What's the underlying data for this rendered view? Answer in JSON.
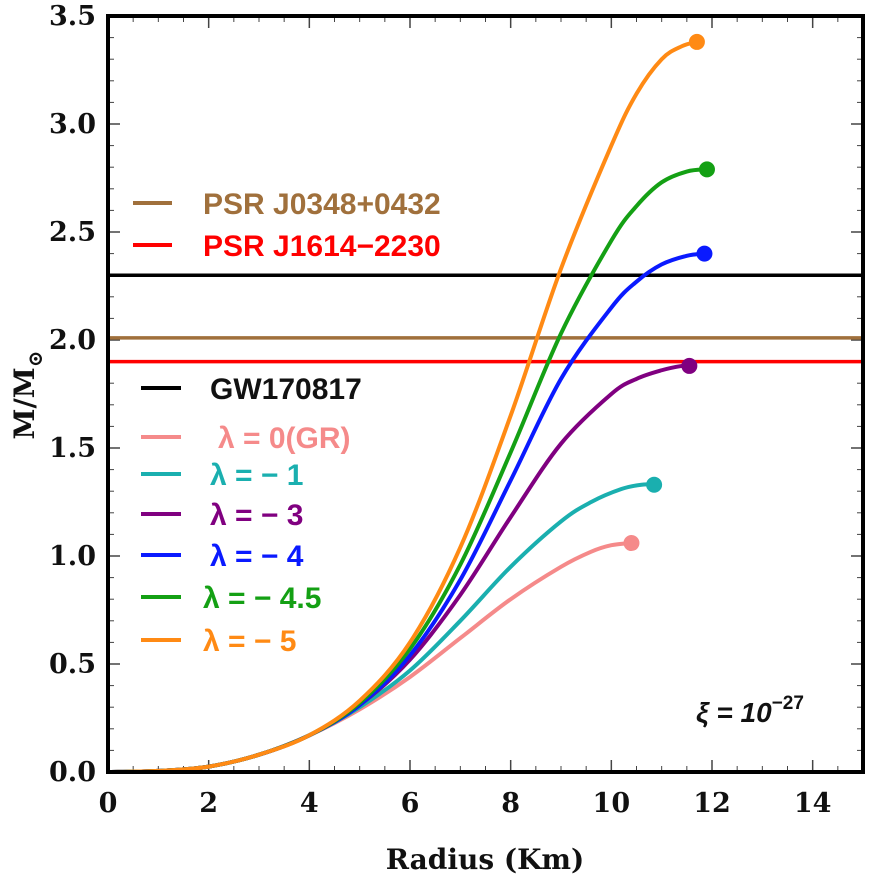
{
  "chart_data": {
    "type": "line",
    "title": "",
    "xlabel": "Radius (Km)",
    "ylabel": "M/M_⊙",
    "ylabel_main": "M/M",
    "ylabel_sub": "⊙",
    "xlim": [
      0,
      15
    ],
    "ylim": [
      0,
      3.5
    ],
    "x_ticks": [
      0,
      2,
      4,
      6,
      8,
      10,
      12,
      14
    ],
    "x_tick_labels": [
      "0",
      "2",
      "4",
      "6",
      "8",
      "10",
      "12",
      "14"
    ],
    "y_ticks": [
      0,
      0.5,
      1.0,
      1.5,
      2.0,
      2.5,
      3.0,
      3.5
    ],
    "y_tick_labels": [
      "0.0",
      "0.5",
      "1.0",
      "1.5",
      "2.0",
      "2.5",
      "3.0",
      "3.5"
    ],
    "annotation": {
      "prefix": "ξ = 10",
      "exponent": "−27"
    },
    "horizontal_lines": [
      {
        "name": "GW170817",
        "y": 2.3,
        "color": "#000000"
      },
      {
        "name": "PSR J0348+0432",
        "y": 2.01,
        "color": "#a0703c"
      },
      {
        "name": "PSR J1614−2230",
        "y": 1.9,
        "color": "#ff0000"
      }
    ],
    "series": [
      {
        "name": "λ = 0(GR)",
        "color": "#f58a8a",
        "x": [
          0.0,
          1.0,
          2.0,
          3.0,
          4.0,
          5.0,
          6.0,
          7.0,
          8.0,
          9.0,
          9.6,
          10.0,
          10.4
        ],
        "y": [
          0.0,
          0.005,
          0.025,
          0.08,
          0.17,
          0.29,
          0.44,
          0.62,
          0.8,
          0.95,
          1.02,
          1.05,
          1.06
        ],
        "endpoint": [
          10.4,
          1.06
        ]
      },
      {
        "name": "λ = − 1",
        "color": "#1aafaf",
        "x": [
          0.0,
          1.0,
          2.0,
          3.0,
          4.0,
          5.0,
          6.0,
          7.0,
          8.0,
          9.0,
          9.6,
          10.2,
          10.6,
          10.85
        ],
        "y": [
          0.0,
          0.005,
          0.025,
          0.08,
          0.17,
          0.3,
          0.47,
          0.7,
          0.95,
          1.16,
          1.25,
          1.31,
          1.33,
          1.33
        ],
        "endpoint": [
          10.85,
          1.33
        ]
      },
      {
        "name": "λ = − 3",
        "color": "#800080",
        "x": [
          0.0,
          1.0,
          2.0,
          3.0,
          4.0,
          5.0,
          6.0,
          7.0,
          8.0,
          9.0,
          10.0,
          10.5,
          11.0,
          11.4,
          11.55
        ],
        "y": [
          0.0,
          0.005,
          0.025,
          0.08,
          0.17,
          0.31,
          0.52,
          0.82,
          1.18,
          1.52,
          1.75,
          1.82,
          1.86,
          1.88,
          1.88
        ],
        "endpoint": [
          11.55,
          1.88
        ]
      },
      {
        "name": "λ = − 4",
        "color": "#0a1aff",
        "x": [
          0.0,
          1.0,
          2.0,
          3.0,
          4.0,
          5.0,
          6.0,
          7.0,
          8.0,
          9.0,
          10.0,
          10.5,
          11.0,
          11.5,
          11.85
        ],
        "y": [
          0.0,
          0.005,
          0.025,
          0.08,
          0.17,
          0.31,
          0.54,
          0.89,
          1.35,
          1.82,
          2.15,
          2.27,
          2.35,
          2.39,
          2.4
        ],
        "endpoint": [
          11.85,
          2.4
        ]
      },
      {
        "name": "λ = − 4.5",
        "color": "#14a014",
        "x": [
          0.0,
          1.0,
          2.0,
          3.0,
          4.0,
          5.0,
          6.0,
          7.0,
          8.0,
          9.0,
          10.0,
          10.5,
          11.0,
          11.5,
          11.9
        ],
        "y": [
          0.0,
          0.005,
          0.025,
          0.08,
          0.17,
          0.32,
          0.57,
          0.96,
          1.48,
          2.03,
          2.46,
          2.62,
          2.73,
          2.78,
          2.79
        ],
        "endpoint": [
          11.9,
          2.79
        ]
      },
      {
        "name": "λ = − 5",
        "color": "#ff8a14",
        "x": [
          0.0,
          1.0,
          2.0,
          3.0,
          4.0,
          5.0,
          6.0,
          7.0,
          8.0,
          9.0,
          10.0,
          10.5,
          11.0,
          11.4,
          11.7
        ],
        "y": [
          0.0,
          0.005,
          0.025,
          0.08,
          0.17,
          0.33,
          0.6,
          1.04,
          1.65,
          2.33,
          2.9,
          3.14,
          3.3,
          3.36,
          3.38
        ],
        "endpoint": [
          11.7,
          3.38
        ]
      }
    ],
    "legend_top": [
      "PSR J0348+0432",
      "PSR J1614−2230"
    ],
    "legend_bottom": [
      "GW170817",
      "λ = 0(GR)",
      "λ = − 1",
      "λ = − 3",
      "λ = − 4",
      "λ = − 4.5",
      "λ = − 5"
    ]
  }
}
